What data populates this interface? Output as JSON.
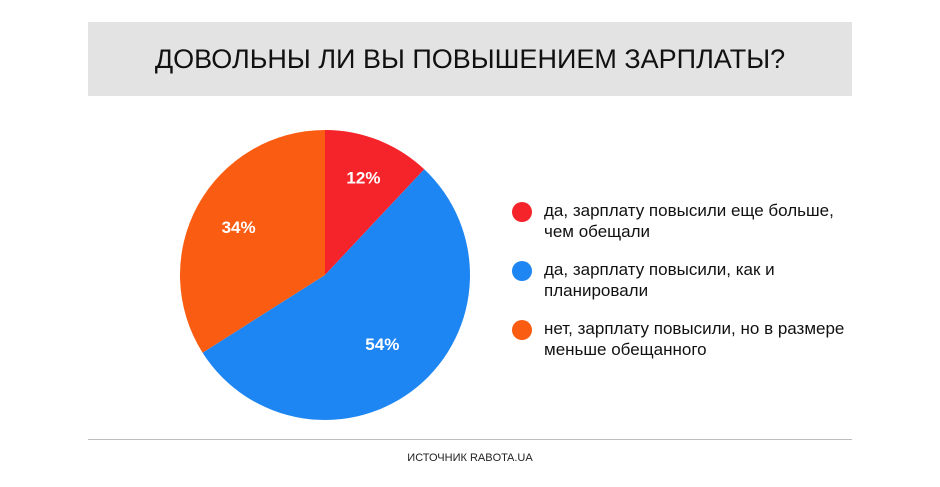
{
  "title": "ДОВОЛЬНЫ ЛИ ВЫ ПОВЫШЕНИЕМ ЗАРПЛАТЫ?",
  "source": "ИСТОЧНИК RABOTA.UA",
  "chart_data": {
    "type": "pie",
    "title": "ДОВОЛЬНЫ ЛИ ВЫ ПОВЫШЕНИЕМ ЗАРПЛАТЫ?",
    "start_angle_deg": 0,
    "direction": "clockwise",
    "legend_position": "right",
    "slices": [
      {
        "label": "да, зарплату повысили еще больше, чем обещали",
        "value": 12,
        "display": "12%",
        "color": "#f5242b"
      },
      {
        "label": "да, зарплату повысили, как и планировали",
        "value": 54,
        "display": "54%",
        "color": "#1e86f3"
      },
      {
        "label": "нет, зарплату повысили, но в размере меньше обещанного",
        "value": 34,
        "display": "34%",
        "color": "#fa5c11"
      }
    ]
  }
}
